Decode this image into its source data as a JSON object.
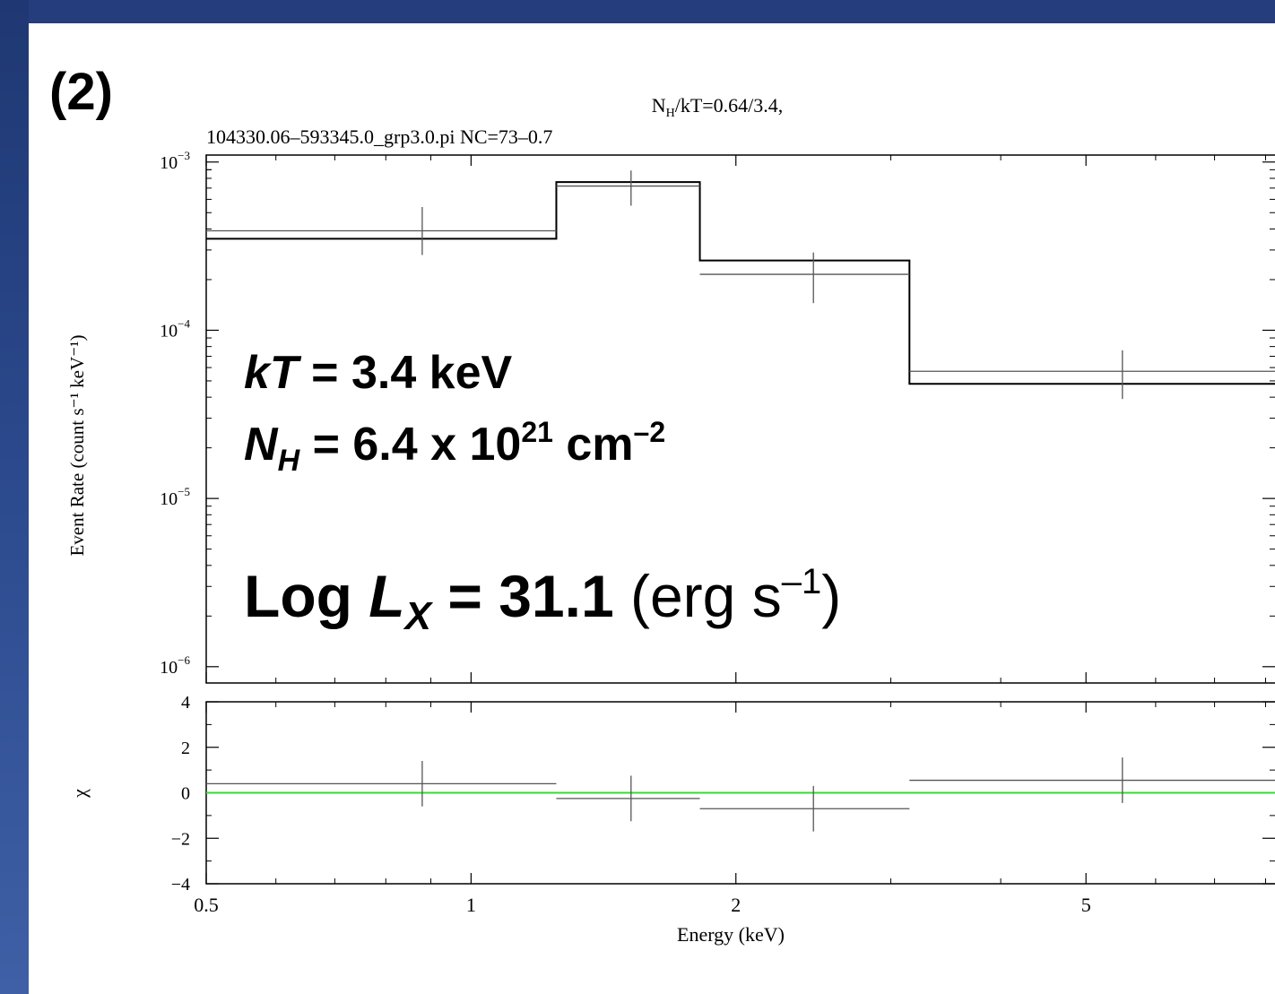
{
  "panel_label": "(2)",
  "chart_data": [
    {
      "type": "line",
      "title_line1": "NH/kT=0.64/3.4,",
      "title_line2": "104330.06–593345.0_grp3.0.pi NC=73–0.7",
      "ylabel": "Event Rate (count s⁻¹ keV⁻¹)",
      "xscale": "log",
      "yscale": "log",
      "xlim": [
        0.5,
        8.2
      ],
      "ylim": [
        8e-07,
        0.0011
      ],
      "ytick_labels": [
        {
          "value": 0.001,
          "mant": "10",
          "exp": "−3"
        },
        {
          "value": 0.0001,
          "mant": "10",
          "exp": "−4"
        },
        {
          "value": 1e-05,
          "mant": "10",
          "exp": "−5"
        },
        {
          "value": 1e-06,
          "mant": "10",
          "exp": "−6"
        }
      ],
      "model_steps": [
        {
          "x0": 0.5,
          "x1": 1.25,
          "y": 0.00035
        },
        {
          "x0": 1.25,
          "x1": 1.82,
          "y": 0.00076
        },
        {
          "x0": 1.82,
          "x1": 3.15,
          "y": 0.00026
        },
        {
          "x0": 3.15,
          "x1": 8.2,
          "y": 4.8e-05
        }
      ],
      "data_points": [
        {
          "x": 0.88,
          "xlo": 0.5,
          "xhi": 1.25,
          "y": 0.00039,
          "ylo": 0.00028,
          "yhi": 0.00054
        },
        {
          "x": 1.52,
          "xlo": 1.25,
          "xhi": 1.82,
          "y": 0.00072,
          "ylo": 0.00055,
          "yhi": 0.00089
        },
        {
          "x": 2.45,
          "xlo": 1.82,
          "xhi": 3.15,
          "y": 0.000215,
          "ylo": 0.000145,
          "yhi": 0.00029
        },
        {
          "x": 5.5,
          "xlo": 3.15,
          "xhi": 8.2,
          "y": 5.7e-05,
          "ylo": 3.9e-05,
          "yhi": 7.6e-05
        }
      ],
      "annotations": {
        "kt_italic": "kT",
        "kt_rest": " = 3.4 keV",
        "nh_italic": "N",
        "nh_sub": "H",
        "nh_rest": " = 6.4 x 10",
        "nh_exp": "21",
        "nh_unit": " cm",
        "nh_unit_exp": "–2",
        "lx_bold": "Log ",
        "lx_italic": "L",
        "lx_sub": "X",
        "lx_val": " = 31.1",
        "lx_unit": " (erg s",
        "lx_unit_exp": "–1",
        "lx_close": ")"
      }
    },
    {
      "type": "scatter",
      "ylabel": "χ",
      "xlabel": "Energy (keV)",
      "xscale": "log",
      "xlim": [
        0.5,
        8.2
      ],
      "ylim": [
        -4,
        4
      ],
      "ytick_labels": [
        "4",
        "2",
        "0",
        "−2",
        "−4"
      ],
      "xtick_labels": [
        {
          "value": 0.5,
          "label": "0.5"
        },
        {
          "value": 1,
          "label": "1"
        },
        {
          "value": 2,
          "label": "2"
        },
        {
          "value": 5,
          "label": "5"
        }
      ],
      "zero_line_color": "#33dd33",
      "residuals": [
        {
          "x": 0.88,
          "xlo": 0.5,
          "xhi": 1.25,
          "y": 0.4,
          "ylo": -0.6,
          "yhi": 1.4
        },
        {
          "x": 1.52,
          "xlo": 1.25,
          "xhi": 1.82,
          "y": -0.25,
          "ylo": -1.25,
          "yhi": 0.75
        },
        {
          "x": 2.45,
          "xlo": 1.82,
          "xhi": 3.15,
          "y": -0.7,
          "ylo": -1.7,
          "yhi": 0.3
        },
        {
          "x": 5.5,
          "xlo": 3.15,
          "xhi": 8.2,
          "y": 0.55,
          "ylo": -0.45,
          "yhi": 1.55
        }
      ]
    }
  ]
}
